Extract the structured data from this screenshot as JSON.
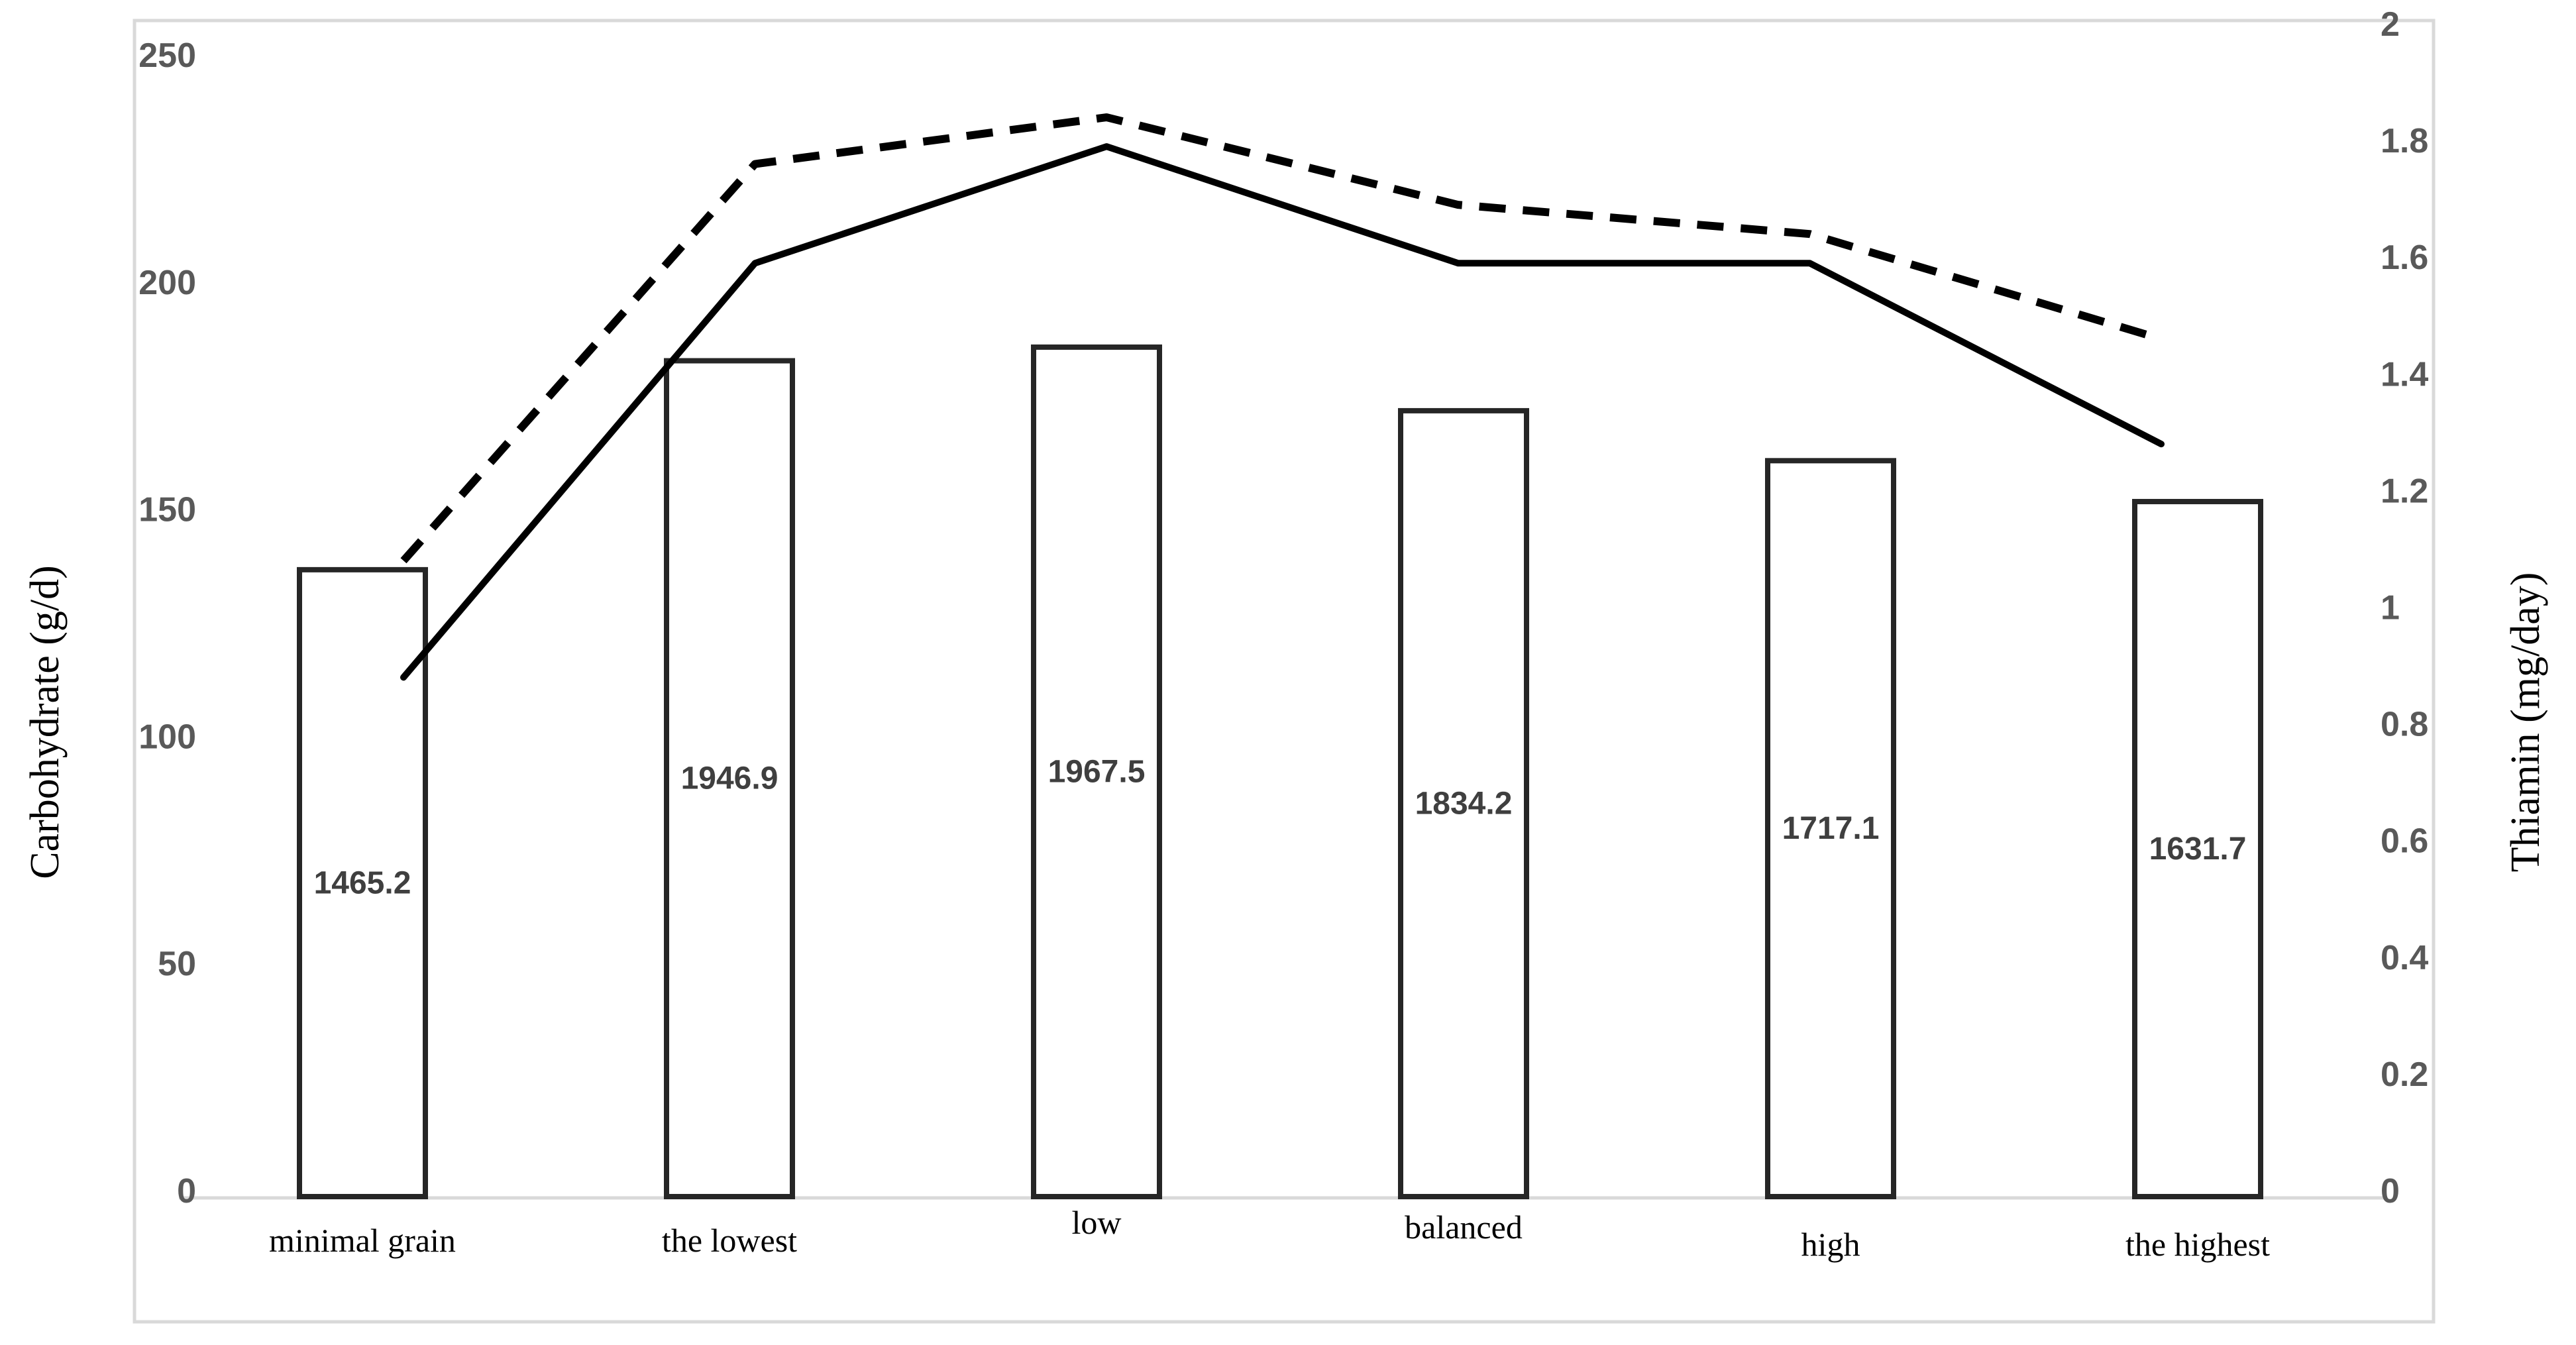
{
  "chart_data": {
    "type": "combo",
    "subtype": "bar+line, dual axis, no legend, no gridlines",
    "categories": [
      "minimal grain",
      "the lowest",
      "low",
      "balanced",
      "high",
      "the highest"
    ],
    "bar_series": {
      "name": "Carbohydrate",
      "axis": "left",
      "values": [
        138,
        184,
        187,
        173,
        162,
        153
      ],
      "data_labels": [
        "1465.2",
        "1946.9",
        "1967.5",
        "1834.2",
        "1717.1",
        "1631.7"
      ]
    },
    "series": [
      {
        "name": "solid-line",
        "style": "solid",
        "axis": "right",
        "values": [
          0.89,
          1.6,
          1.8,
          1.6,
          1.6,
          1.29
        ]
      },
      {
        "name": "dashed-line",
        "style": "dashed",
        "axis": "right",
        "values": [
          1.09,
          1.77,
          1.85,
          1.7,
          1.65,
          1.47
        ]
      }
    ],
    "left_axis": {
      "label": "Carbohydrate (g/d)",
      "min": 0,
      "max": 250,
      "tick_step": 50,
      "ticks": [
        "250",
        "200",
        "150",
        "100",
        "50",
        "0"
      ],
      "tick_values": [
        250,
        200,
        150,
        100,
        50,
        0
      ]
    },
    "right_axis": {
      "label": "Thiamin (mg/day)",
      "min": 0,
      "max": 2,
      "tick_step": 0.2,
      "ticks": [
        "2",
        "1.8",
        "1.6",
        "1.4",
        "1.2",
        "1",
        "0.8",
        "0.6",
        "0.4",
        "0.2",
        "0"
      ],
      "tick_values": [
        2,
        1.8,
        1.6,
        1.4,
        1.2,
        1,
        0.8,
        0.6,
        0.4,
        0.2,
        0
      ]
    },
    "grid": false,
    "legend": "none",
    "colors": {
      "background": "#ffffff",
      "bar_fill": "#ffffff",
      "bar_border": "#262626",
      "line": "#000000",
      "tick_text": "#595959",
      "bar_label_text": "#3f3f3f",
      "category_text": "#000000",
      "frame_border": "#d9d9d9",
      "axis_line": "#d9d9d9"
    }
  }
}
